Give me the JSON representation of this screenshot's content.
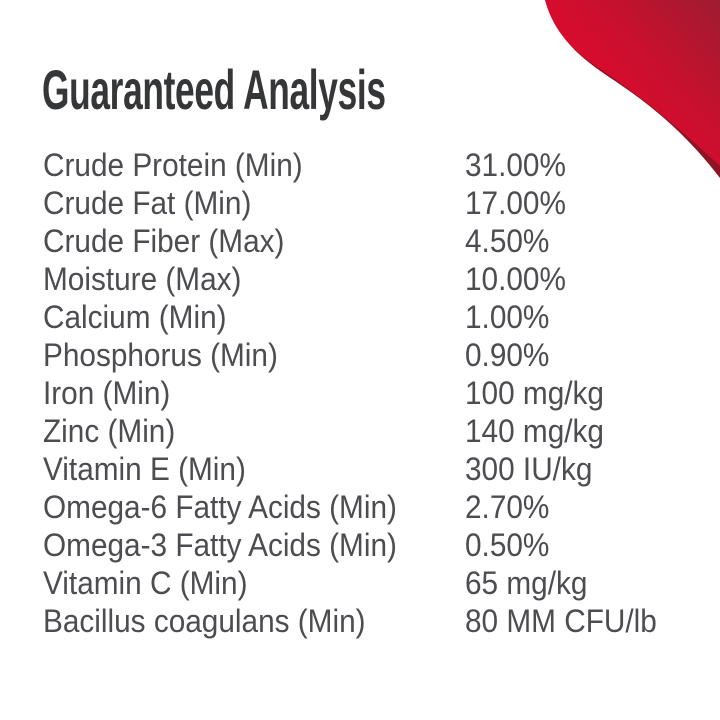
{
  "title": "Guaranteed Analysis",
  "analysis": {
    "rows": [
      {
        "label": "Crude Protein (Min)",
        "value": "31.00%"
      },
      {
        "label": "Crude Fat (Min)",
        "value": "17.00%"
      },
      {
        "label": "Crude Fiber (Max)",
        "value": "4.50%"
      },
      {
        "label": "Moisture (Max)",
        "value": "10.00%"
      },
      {
        "label": "Calcium (Min)",
        "value": "1.00%"
      },
      {
        "label": "Phosphorus (Min)",
        "value": "0.90%"
      },
      {
        "label": "Iron (Min)",
        "value": "100 mg/kg"
      },
      {
        "label": "Zinc (Min)",
        "value": "140 mg/kg"
      },
      {
        "label": "Vitamin E (Min)",
        "value": "300 IU/kg"
      },
      {
        "label": "Omega-6 Fatty Acids (Min)",
        "value": "2.70%"
      },
      {
        "label": "Omega-3 Fatty Acids (Min)",
        "value": "0.50%"
      },
      {
        "label": "Vitamin C (Min)",
        "value": "65 mg/kg"
      },
      {
        "label": "Bacillus coagulans (Min)",
        "value": "80 MM CFU/lb"
      }
    ]
  },
  "colors": {
    "background": "#ffffff",
    "title_text": "#353638",
    "body_text": "#4c4d50"
  },
  "decoration": {
    "name": "red-swoosh",
    "gradient_bright": "#e8062c",
    "gradient_mid": "#c8102e",
    "gradient_dark": "#9f1c30",
    "edge_color": "#8c1423"
  }
}
